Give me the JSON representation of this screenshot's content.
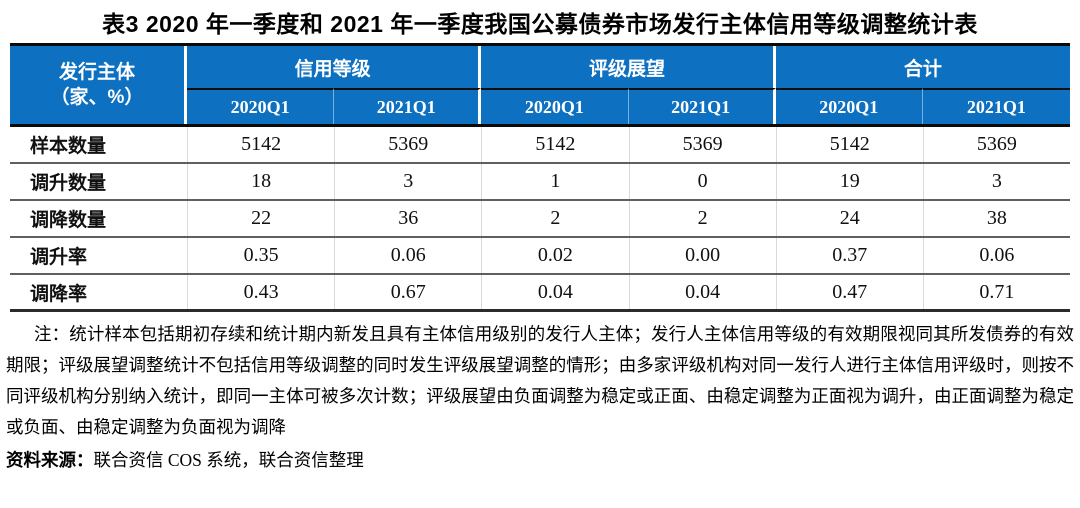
{
  "title": "表3 2020 年一季度和 2021 年一季度我国公募债券市场发行主体信用等级调整统计表",
  "table": {
    "corner": {
      "line1": "发行主体",
      "line2": "（家、%）"
    },
    "groups": [
      "信用等级",
      "评级展望",
      "合计"
    ],
    "periods": [
      "2020Q1",
      "2021Q1",
      "2020Q1",
      "2021Q1",
      "2020Q1",
      "2021Q1"
    ],
    "rows": [
      {
        "label": "样本数量",
        "values": [
          "5142",
          "5369",
          "5142",
          "5369",
          "5142",
          "5369"
        ]
      },
      {
        "label": "调升数量",
        "values": [
          "18",
          "3",
          "1",
          "0",
          "19",
          "3"
        ]
      },
      {
        "label": "调降数量",
        "values": [
          "22",
          "36",
          "2",
          "2",
          "24",
          "38"
        ]
      },
      {
        "label": "调升率",
        "values": [
          "0.35",
          "0.06",
          "0.02",
          "0.00",
          "0.37",
          "0.06"
        ]
      },
      {
        "label": "调降率",
        "values": [
          "0.43",
          "0.67",
          "0.04",
          "0.04",
          "0.47",
          "0.71"
        ]
      }
    ]
  },
  "note": "注：统计样本包括期初存续和统计期内新发且具有主体信用级别的发行人主体；发行人主体信用等级的有效期限视同其所发债券的有效期限；评级展望调整统计不包括信用等级调整的同时发生评级展望调整的情形；由多家评级机构对同一发行人进行主体信用评级时，则按不同评级机构分别纳入统计，即同一主体可被多次计数；评级展望由负面调整为稳定或正面、由稳定调整为正面视为调升，由正面调整为稳定或负面、由稳定调整为负面视为调降",
  "source": {
    "label": "资料来源：",
    "text": "联合资信 COS 系统，联合资信整理"
  },
  "colors": {
    "header_bg": "#0d70c0",
    "header_text": "#ffffff"
  }
}
